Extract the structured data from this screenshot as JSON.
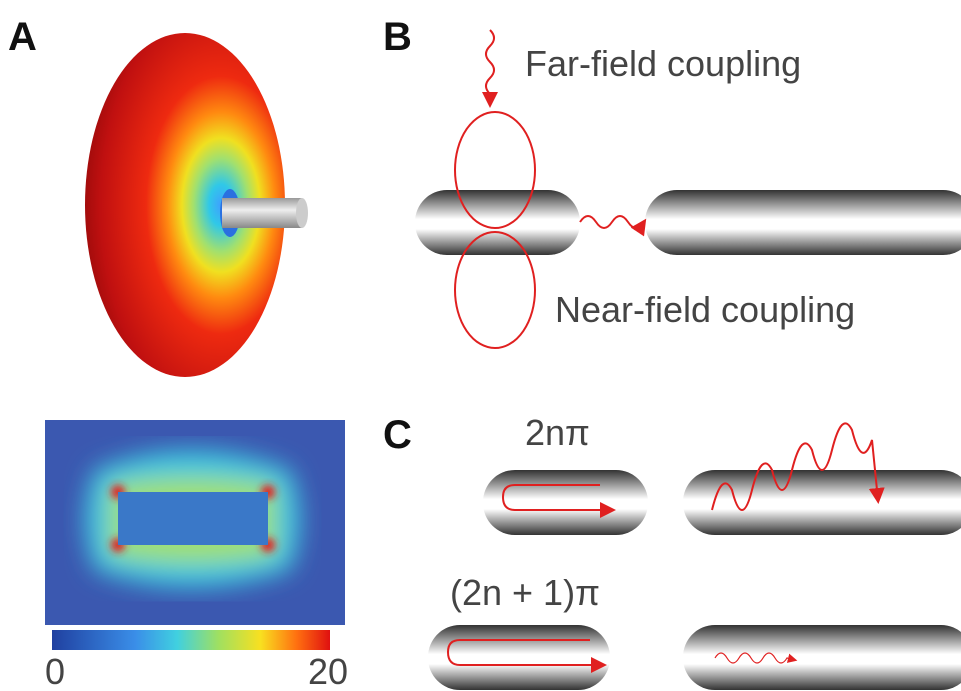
{
  "panels": {
    "a": "A",
    "b": "B",
    "c": "C"
  },
  "far_field": "Far-field coupling",
  "near_field": "Near-field coupling",
  "even_phase": "2nπ",
  "odd_phase": "(2n + 1)π",
  "colorbar": {
    "min": "0",
    "max": "20"
  }
}
